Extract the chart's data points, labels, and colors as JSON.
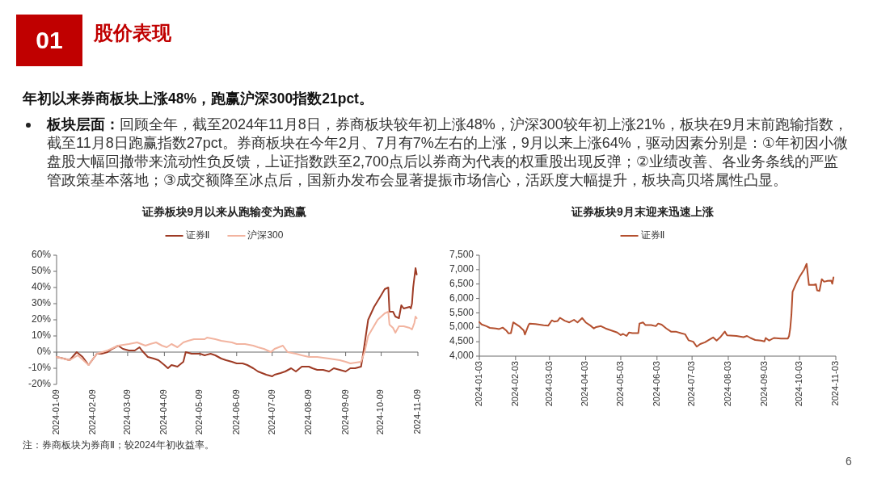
{
  "chart_data": [
    {
      "type": "other",
      "title": "股价表现",
      "annotations": [
        "01",
        "年初以来券商板块上涨48%，跑赢沪深300指数21pct。",
        "板块层面：",
        "回顾全年，截至2024年11月8日，券商板块较年初上涨48%，沪深300较年初上涨21%，板块在9月末前跑输指数，",
        "截至11月8日跑赢指数27pct。券商板块在今年2月、7月有7%左右的上涨，9月以来上涨64%，驱动因素分别是：①年初因小微",
        "盘股大幅回撤带来流动性负反馈，上证指数跌至2,700点后以券商为代表的权重股出现反弹；②业绩改善、各业务条线的严监",
        "管政策基本落地；③成交额降至冰点后，国新办发布会显著提振市场信心，活跃度大幅提升，板块高贝塔属性凸显。",
        "6"
      ]
    },
    {
      "type": "line",
      "title": "证券板块9月以来从跑输变为跑赢",
      "legend": "top",
      "series": [
        {
          "name": "证券Ⅱ",
          "color": "#9e3b25",
          "x": [
            "2024-01-09",
            "2024-01-15",
            "2024-01-20",
            "2024-01-26",
            "2024-01-31",
            "2024-02-05",
            "2024-02-08",
            "2024-02-12",
            "2024-02-16",
            "2024-02-21",
            "2024-02-25",
            "2024-03-01",
            "2024-03-05",
            "2024-03-10",
            "2024-03-15",
            "2024-03-19",
            "2024-03-21",
            "2024-03-26",
            "2024-03-31",
            "2024-04-04",
            "2024-04-09",
            "2024-04-12",
            "2024-04-15",
            "2024-04-20",
            "2024-04-25",
            "2024-04-27",
            "2024-05-02",
            "2024-05-09",
            "2024-05-13",
            "2024-05-18",
            "2024-05-22",
            "2024-05-27",
            "2024-05-31",
            "2024-06-05",
            "2024-06-09",
            "2024-06-14",
            "2024-06-18",
            "2024-06-23",
            "2024-06-27",
            "2024-07-04",
            "2024-07-09",
            "2024-07-11",
            "2024-07-16",
            "2024-07-20",
            "2024-07-25",
            "2024-07-29",
            "2024-08-03",
            "2024-08-09",
            "2024-08-12",
            "2024-08-16",
            "2024-08-21",
            "2024-08-26",
            "2024-08-30",
            "2024-09-04",
            "2024-09-09",
            "2024-09-13",
            "2024-09-17",
            "2024-09-22",
            "2024-09-24",
            "2024-09-26",
            "2024-09-28",
            "2024-10-03",
            "2024-10-08",
            "2024-10-12",
            "2024-10-15",
            "2024-10-16",
            "2024-10-19",
            "2024-10-21",
            "2024-10-24",
            "2024-10-26",
            "2024-10-28",
            "2024-11-02",
            "2024-11-03",
            "2024-11-04",
            "2024-11-05",
            "2024-11-07",
            "2024-11-08"
          ],
          "values": [
            -3,
            -4,
            -5,
            0,
            -3,
            -8,
            -5,
            -1,
            -1,
            0,
            2,
            4,
            2,
            1,
            1,
            3,
            1,
            -3,
            -4,
            -5,
            -8,
            -10,
            -8,
            -9,
            -6,
            0,
            -1,
            -1,
            -2,
            -1,
            -2,
            -4,
            -5,
            -6,
            -7,
            -7,
            -8,
            -10,
            -12,
            -14,
            -15,
            -14,
            -13,
            -12,
            -10,
            -12,
            -9,
            -9,
            -10,
            -11,
            -11,
            -12,
            -10,
            -11,
            -12,
            -10,
            -10,
            -9,
            0,
            10,
            20,
            28,
            34,
            39,
            40,
            25,
            25,
            22,
            21,
            29,
            27,
            28,
            27,
            30,
            40,
            52,
            48
          ]
        },
        {
          "name": "沪深300",
          "color": "#f2b4a0",
          "x": [
            "2024-01-09",
            "2024-01-20",
            "2024-01-27",
            "2024-02-05",
            "2024-02-12",
            "2024-02-21",
            "2024-03-01",
            "2024-03-10",
            "2024-03-17",
            "2024-03-24",
            "2024-03-28",
            "2024-04-02",
            "2024-04-07",
            "2024-04-11",
            "2024-04-15",
            "2024-04-20",
            "2024-04-25",
            "2024-04-29",
            "2024-05-04",
            "2024-05-13",
            "2024-05-15",
            "2024-05-22",
            "2024-05-27",
            "2024-06-05",
            "2024-06-09",
            "2024-06-16",
            "2024-06-23",
            "2024-06-27",
            "2024-07-02",
            "2024-07-08",
            "2024-07-11",
            "2024-07-18",
            "2024-07-22",
            "2024-07-29",
            "2024-08-03",
            "2024-08-09",
            "2024-08-16",
            "2024-08-26",
            "2024-09-04",
            "2024-09-09",
            "2024-09-13",
            "2024-09-22",
            "2024-09-25",
            "2024-09-28",
            "2024-10-06",
            "2024-10-12",
            "2024-10-15",
            "2024-10-16",
            "2024-10-19",
            "2024-10-21",
            "2024-10-24",
            "2024-10-28",
            "2024-11-02",
            "2024-11-04",
            "2024-11-06",
            "2024-11-07",
            "2024-11-08"
          ],
          "values": [
            -3,
            -5,
            -2,
            -8,
            -1,
            1,
            4,
            5,
            6,
            4,
            5,
            6,
            4,
            3,
            5,
            3,
            6,
            7,
            8,
            8,
            9,
            8,
            7,
            6,
            5,
            5,
            4,
            3,
            2,
            0,
            2,
            4,
            0,
            -1,
            -2,
            -3,
            -3,
            -4,
            -5,
            -6,
            -7,
            -6,
            0,
            10,
            20,
            24,
            25,
            17,
            15,
            12,
            16,
            16,
            15,
            14,
            18,
            22,
            21
          ]
        }
      ],
      "xlim": [
        "2024-01-09",
        "2024-11-09"
      ],
      "xticks": [
        "2024-01-09",
        "2024-02-09",
        "2024-03-09",
        "2024-04-09",
        "2024-05-09",
        "2024-06-09",
        "2024-07-09",
        "2024-08-09",
        "2024-09-09",
        "2024-10-09",
        "2024-11-09"
      ],
      "ylim": [
        -20,
        60
      ],
      "yticks": [
        {
          "value": -20,
          "label": "-20%"
        },
        {
          "value": -10,
          "label": "-10%"
        },
        {
          "value": 0,
          "label": "0%"
        },
        {
          "value": 10,
          "label": "10%"
        },
        {
          "value": 20,
          "label": "20%"
        },
        {
          "value": 30,
          "label": "30%"
        },
        {
          "value": 40,
          "label": "40%"
        },
        {
          "value": 50,
          "label": "50%"
        },
        {
          "value": 60,
          "label": "60%"
        }
      ],
      "annotations": [
        "注：券商板块为券商Ⅱ；较2024年初收益率。"
      ]
    },
    {
      "type": "line",
      "title": "证券板块9月末迎来迅速上涨",
      "legend": "top",
      "x": [
        "2024-01-03",
        "2024-01-05",
        "2024-01-09",
        "2024-01-12",
        "2024-01-17",
        "2024-01-20",
        "2024-01-23",
        "2024-01-26",
        "2024-01-28",
        "2024-01-30",
        "2024-02-01",
        "2024-02-06",
        "2024-02-10",
        "2024-02-11",
        "2024-02-14",
        "2024-02-15",
        "2024-02-20",
        "2024-02-27",
        "2024-03-02",
        "2024-03-05",
        "2024-03-07",
        "2024-03-10",
        "2024-03-12",
        "2024-03-16",
        "2024-03-20",
        "2024-03-24",
        "2024-03-27",
        "2024-03-31",
        "2024-04-03",
        "2024-04-07",
        "2024-04-10",
        "2024-04-12",
        "2024-04-16",
        "2024-04-20",
        "2024-04-25",
        "2024-04-30",
        "2024-05-03",
        "2024-05-05",
        "2024-05-08",
        "2024-05-10",
        "2024-05-13",
        "2024-05-18",
        "2024-05-19",
        "2024-05-22",
        "2024-05-24",
        "2024-05-29",
        "2024-06-02",
        "2024-06-04",
        "2024-06-07",
        "2024-06-11",
        "2024-06-15",
        "2024-06-19",
        "2024-06-24",
        "2024-06-27",
        "2024-06-30",
        "2024-07-04",
        "2024-07-07",
        "2024-07-10",
        "2024-07-14",
        "2024-07-18",
        "2024-07-21",
        "2024-07-24",
        "2024-07-27",
        "2024-07-31",
        "2024-08-02",
        "2024-08-10",
        "2024-08-16",
        "2024-08-19",
        "2024-08-22",
        "2024-08-26",
        "2024-08-31",
        "2024-09-03",
        "2024-09-04",
        "2024-09-07",
        "2024-09-11",
        "2024-09-17",
        "2024-09-23",
        "2024-09-24",
        "2024-09-25",
        "2024-09-26",
        "2024-09-27",
        "2024-09-30",
        "2024-10-03",
        "2024-10-07",
        "2024-10-09",
        "2024-10-11",
        "2024-10-15",
        "2024-10-17",
        "2024-10-18",
        "2024-10-20",
        "2024-10-22",
        "2024-10-24",
        "2024-10-27",
        "2024-10-30",
        "2024-10-31",
        "2024-11-01"
      ],
      "series": [
        {
          "name": "证券Ⅱ",
          "color": "#b4502f",
          "values": [
            5180,
            5100,
            5040,
            4980,
            4960,
            4940,
            4990,
            4890,
            4790,
            4800,
            5170,
            5040,
            4890,
            4750,
            5070,
            5130,
            5110,
            5070,
            5060,
            5240,
            5200,
            5220,
            5330,
            5230,
            5170,
            5260,
            5170,
            5320,
            5170,
            5060,
            4960,
            5010,
            5040,
            4960,
            4890,
            4820,
            4730,
            4770,
            4700,
            4820,
            4800,
            4800,
            5130,
            5170,
            5080,
            5080,
            5040,
            5130,
            5090,
            4960,
            4850,
            4850,
            4790,
            4760,
            4550,
            4500,
            4330,
            4420,
            4480,
            4580,
            4650,
            4540,
            4650,
            4850,
            4720,
            4700,
            4660,
            4700,
            4630,
            4560,
            4540,
            4510,
            4630,
            4540,
            4630,
            4610,
            4610,
            4700,
            4960,
            5430,
            6230,
            6510,
            6750,
            7010,
            7200,
            6470,
            6470,
            6490,
            6280,
            6260,
            6670,
            6580,
            6610,
            6620,
            6510,
            6730
          ]
        }
      ],
      "xlim": [
        "2024-01-03",
        "2024-11-03"
      ],
      "xticks": [
        "2024-01-03",
        "2024-02-03",
        "2024-03-03",
        "2024-04-03",
        "2024-05-03",
        "2024-06-03",
        "2024-07-03",
        "2024-08-03",
        "2024-09-03",
        "2024-10-03",
        "2024-11-03"
      ],
      "ylim": [
        4000,
        7500
      ],
      "yticks": [
        {
          "value": 4000,
          "label": "4,000"
        },
        {
          "value": 4500,
          "label": "4,500"
        },
        {
          "value": 5000,
          "label": "5,000"
        },
        {
          "value": 5500,
          "label": "5,500"
        },
        {
          "value": 6000,
          "label": "6,000"
        },
        {
          "value": 6500,
          "label": "6,500"
        },
        {
          "value": 7000,
          "label": "7,000"
        },
        {
          "value": 7500,
          "label": "7,500"
        }
      ]
    }
  ]
}
